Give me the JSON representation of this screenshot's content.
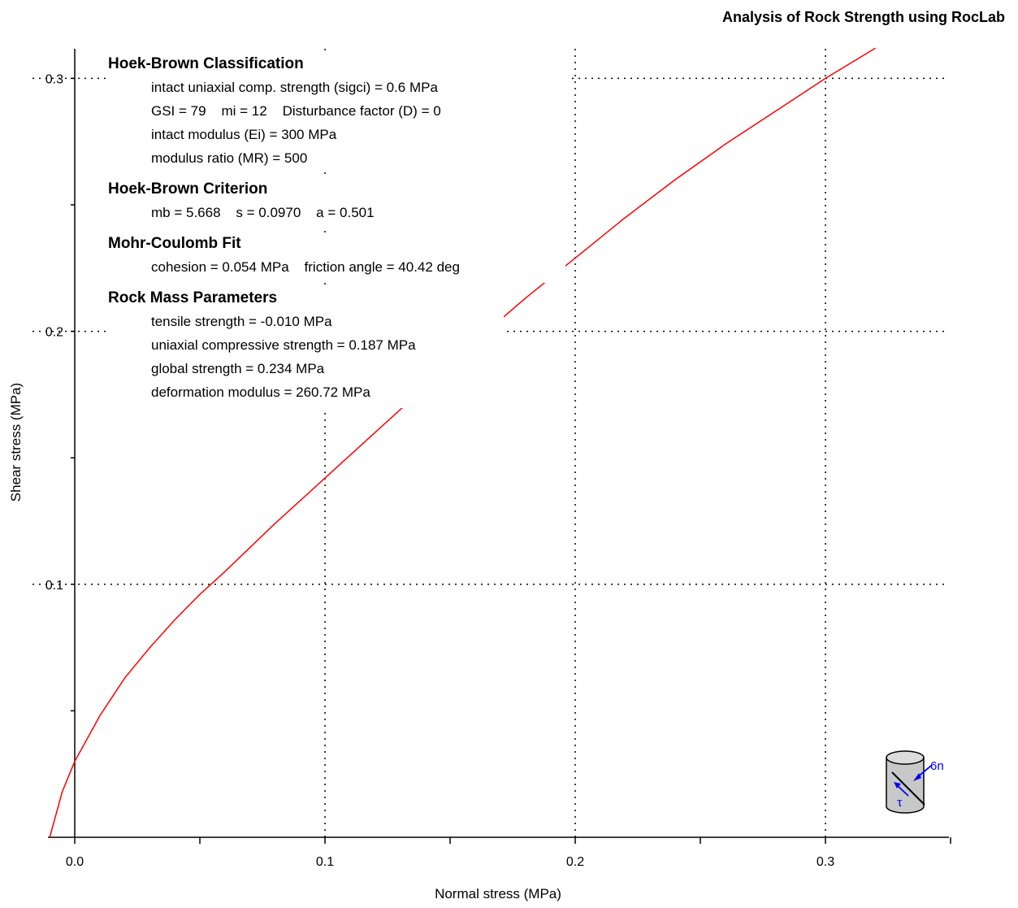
{
  "chart_data": {
    "type": "line",
    "title": "Analysis of Rock Strength using RocLab",
    "xlabel": "Normal stress (MPa)",
    "ylabel": "Shear stress (MPa)",
    "xlim": [
      -0.01,
      0.35
    ],
    "ylim": [
      0,
      0.31
    ],
    "xticks": [
      0.0,
      0.1,
      0.2,
      0.3
    ],
    "xtick_labels": [
      "0.0",
      "0.1",
      "0.2",
      "0.3"
    ],
    "yticks": [
      0.1,
      0.2,
      0.3
    ],
    "ytick_labels": [
      "0.1",
      "0.2",
      "0.3"
    ],
    "grid": "dotted",
    "series": [
      {
        "color": "#ff0000",
        "x": [
          -0.01,
          -0.005,
          0.0,
          0.01,
          0.02,
          0.03,
          0.04,
          0.05,
          0.06,
          0.08,
          0.1,
          0.12,
          0.14,
          0.15,
          0.16,
          0.18,
          0.2,
          0.22,
          0.24,
          0.26,
          0.28,
          0.3,
          0.32
        ],
        "y": [
          0.0,
          0.018,
          0.03,
          0.048,
          0.063,
          0.075,
          0.086,
          0.096,
          0.105,
          0.124,
          0.142,
          0.16,
          0.178,
          0.187,
          0.196,
          0.213,
          0.229,
          0.245,
          0.26,
          0.274,
          0.287,
          0.3,
          0.312
        ]
      }
    ]
  },
  "annotations": [
    {
      "heading": "Hoek-Brown Classification",
      "lines": [
        "intact uniaxial comp. strength (sigci) = 0.6 MPa",
        "GSI = 79    mi = 12    Disturbance factor (D) = 0",
        "intact modulus (Ei) = 300 MPa",
        "modulus ratio (MR) = 500"
      ]
    },
    {
      "heading": "Hoek-Brown Criterion",
      "lines": [
        "mb = 5.668    s = 0.0970    a = 0.501"
      ]
    },
    {
      "heading": "Mohr-Coulomb Fit",
      "lines": [
        "cohesion = 0.054 MPa    friction angle = 40.42 deg"
      ]
    },
    {
      "heading": "Rock Mass Parameters",
      "lines": [
        "tensile strength = -0.010 MPa",
        "uniaxial compressive strength = 0.187 MPa",
        "global strength = 0.234 MPa",
        "deformation modulus = 260.72 MPa"
      ]
    }
  ],
  "legend_icon": {
    "name": "rock-sample-stress-icon",
    "labels": [
      "6n",
      "τ"
    ],
    "color": "#0000ff"
  }
}
